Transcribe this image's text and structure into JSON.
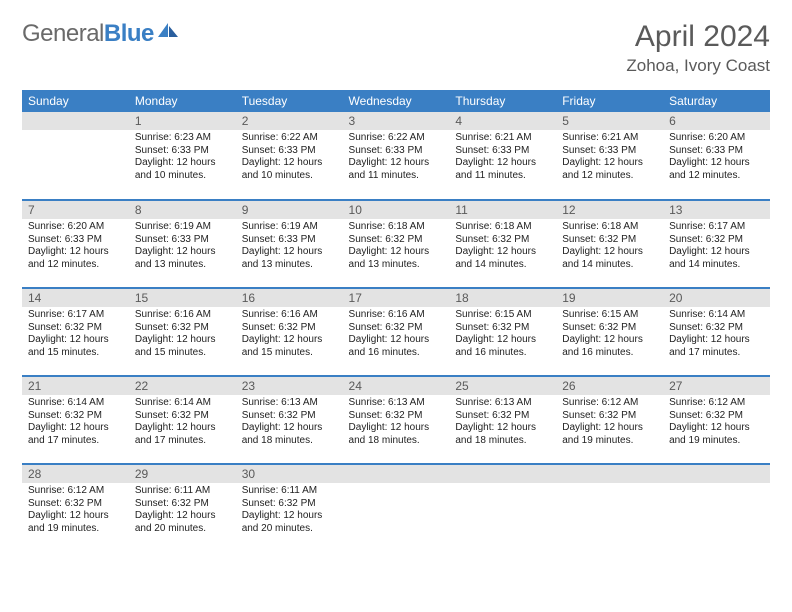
{
  "brand": {
    "general": "General",
    "blue": "Blue"
  },
  "title": "April 2024",
  "location": "Zohoa, Ivory Coast",
  "colors": {
    "header_bg": "#3a7fc4",
    "daynum_bg": "#e3e3e3",
    "text": "#222222",
    "muted": "#5a5a5a"
  },
  "weekdays": [
    "Sunday",
    "Monday",
    "Tuesday",
    "Wednesday",
    "Thursday",
    "Friday",
    "Saturday"
  ],
  "weeks": [
    [
      {
        "n": "",
        "sr": "",
        "ss": "",
        "dl": ""
      },
      {
        "n": "1",
        "sr": "Sunrise: 6:23 AM",
        "ss": "Sunset: 6:33 PM",
        "dl": "Daylight: 12 hours and 10 minutes."
      },
      {
        "n": "2",
        "sr": "Sunrise: 6:22 AM",
        "ss": "Sunset: 6:33 PM",
        "dl": "Daylight: 12 hours and 10 minutes."
      },
      {
        "n": "3",
        "sr": "Sunrise: 6:22 AM",
        "ss": "Sunset: 6:33 PM",
        "dl": "Daylight: 12 hours and 11 minutes."
      },
      {
        "n": "4",
        "sr": "Sunrise: 6:21 AM",
        "ss": "Sunset: 6:33 PM",
        "dl": "Daylight: 12 hours and 11 minutes."
      },
      {
        "n": "5",
        "sr": "Sunrise: 6:21 AM",
        "ss": "Sunset: 6:33 PM",
        "dl": "Daylight: 12 hours and 12 minutes."
      },
      {
        "n": "6",
        "sr": "Sunrise: 6:20 AM",
        "ss": "Sunset: 6:33 PM",
        "dl": "Daylight: 12 hours and 12 minutes."
      }
    ],
    [
      {
        "n": "7",
        "sr": "Sunrise: 6:20 AM",
        "ss": "Sunset: 6:33 PM",
        "dl": "Daylight: 12 hours and 12 minutes."
      },
      {
        "n": "8",
        "sr": "Sunrise: 6:19 AM",
        "ss": "Sunset: 6:33 PM",
        "dl": "Daylight: 12 hours and 13 minutes."
      },
      {
        "n": "9",
        "sr": "Sunrise: 6:19 AM",
        "ss": "Sunset: 6:33 PM",
        "dl": "Daylight: 12 hours and 13 minutes."
      },
      {
        "n": "10",
        "sr": "Sunrise: 6:18 AM",
        "ss": "Sunset: 6:32 PM",
        "dl": "Daylight: 12 hours and 13 minutes."
      },
      {
        "n": "11",
        "sr": "Sunrise: 6:18 AM",
        "ss": "Sunset: 6:32 PM",
        "dl": "Daylight: 12 hours and 14 minutes."
      },
      {
        "n": "12",
        "sr": "Sunrise: 6:18 AM",
        "ss": "Sunset: 6:32 PM",
        "dl": "Daylight: 12 hours and 14 minutes."
      },
      {
        "n": "13",
        "sr": "Sunrise: 6:17 AM",
        "ss": "Sunset: 6:32 PM",
        "dl": "Daylight: 12 hours and 14 minutes."
      }
    ],
    [
      {
        "n": "14",
        "sr": "Sunrise: 6:17 AM",
        "ss": "Sunset: 6:32 PM",
        "dl": "Daylight: 12 hours and 15 minutes."
      },
      {
        "n": "15",
        "sr": "Sunrise: 6:16 AM",
        "ss": "Sunset: 6:32 PM",
        "dl": "Daylight: 12 hours and 15 minutes."
      },
      {
        "n": "16",
        "sr": "Sunrise: 6:16 AM",
        "ss": "Sunset: 6:32 PM",
        "dl": "Daylight: 12 hours and 15 minutes."
      },
      {
        "n": "17",
        "sr": "Sunrise: 6:16 AM",
        "ss": "Sunset: 6:32 PM",
        "dl": "Daylight: 12 hours and 16 minutes."
      },
      {
        "n": "18",
        "sr": "Sunrise: 6:15 AM",
        "ss": "Sunset: 6:32 PM",
        "dl": "Daylight: 12 hours and 16 minutes."
      },
      {
        "n": "19",
        "sr": "Sunrise: 6:15 AM",
        "ss": "Sunset: 6:32 PM",
        "dl": "Daylight: 12 hours and 16 minutes."
      },
      {
        "n": "20",
        "sr": "Sunrise: 6:14 AM",
        "ss": "Sunset: 6:32 PM",
        "dl": "Daylight: 12 hours and 17 minutes."
      }
    ],
    [
      {
        "n": "21",
        "sr": "Sunrise: 6:14 AM",
        "ss": "Sunset: 6:32 PM",
        "dl": "Daylight: 12 hours and 17 minutes."
      },
      {
        "n": "22",
        "sr": "Sunrise: 6:14 AM",
        "ss": "Sunset: 6:32 PM",
        "dl": "Daylight: 12 hours and 17 minutes."
      },
      {
        "n": "23",
        "sr": "Sunrise: 6:13 AM",
        "ss": "Sunset: 6:32 PM",
        "dl": "Daylight: 12 hours and 18 minutes."
      },
      {
        "n": "24",
        "sr": "Sunrise: 6:13 AM",
        "ss": "Sunset: 6:32 PM",
        "dl": "Daylight: 12 hours and 18 minutes."
      },
      {
        "n": "25",
        "sr": "Sunrise: 6:13 AM",
        "ss": "Sunset: 6:32 PM",
        "dl": "Daylight: 12 hours and 18 minutes."
      },
      {
        "n": "26",
        "sr": "Sunrise: 6:12 AM",
        "ss": "Sunset: 6:32 PM",
        "dl": "Daylight: 12 hours and 19 minutes."
      },
      {
        "n": "27",
        "sr": "Sunrise: 6:12 AM",
        "ss": "Sunset: 6:32 PM",
        "dl": "Daylight: 12 hours and 19 minutes."
      }
    ],
    [
      {
        "n": "28",
        "sr": "Sunrise: 6:12 AM",
        "ss": "Sunset: 6:32 PM",
        "dl": "Daylight: 12 hours and 19 minutes."
      },
      {
        "n": "29",
        "sr": "Sunrise: 6:11 AM",
        "ss": "Sunset: 6:32 PM",
        "dl": "Daylight: 12 hours and 20 minutes."
      },
      {
        "n": "30",
        "sr": "Sunrise: 6:11 AM",
        "ss": "Sunset: 6:32 PM",
        "dl": "Daylight: 12 hours and 20 minutes."
      },
      {
        "n": "",
        "sr": "",
        "ss": "",
        "dl": ""
      },
      {
        "n": "",
        "sr": "",
        "ss": "",
        "dl": ""
      },
      {
        "n": "",
        "sr": "",
        "ss": "",
        "dl": ""
      },
      {
        "n": "",
        "sr": "",
        "ss": "",
        "dl": ""
      }
    ]
  ]
}
